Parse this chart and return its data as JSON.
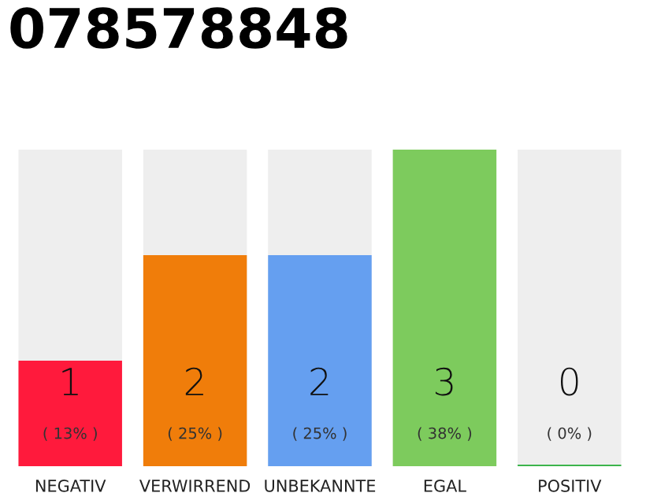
{
  "chart_data": {
    "type": "bar",
    "title": "078578848",
    "categories": [
      "NEGATIV",
      "VERWIRREND",
      "UNBEKANNTE",
      "EGAL",
      "POSITIV"
    ],
    "values": [
      1,
      2,
      2,
      3,
      0
    ],
    "colors": [
      "#ff1a3c",
      "#f07d0a",
      "#659ff0",
      "#7dcb5d",
      "#3cb44b"
    ],
    "value_labels": [
      "1",
      "2",
      "2",
      "3",
      "0"
    ],
    "annotations": [
      "( 13% )",
      "( 25% )",
      "( 25% )",
      "( 38% )",
      "( 0% )"
    ],
    "grid": false,
    "legend": false
  }
}
